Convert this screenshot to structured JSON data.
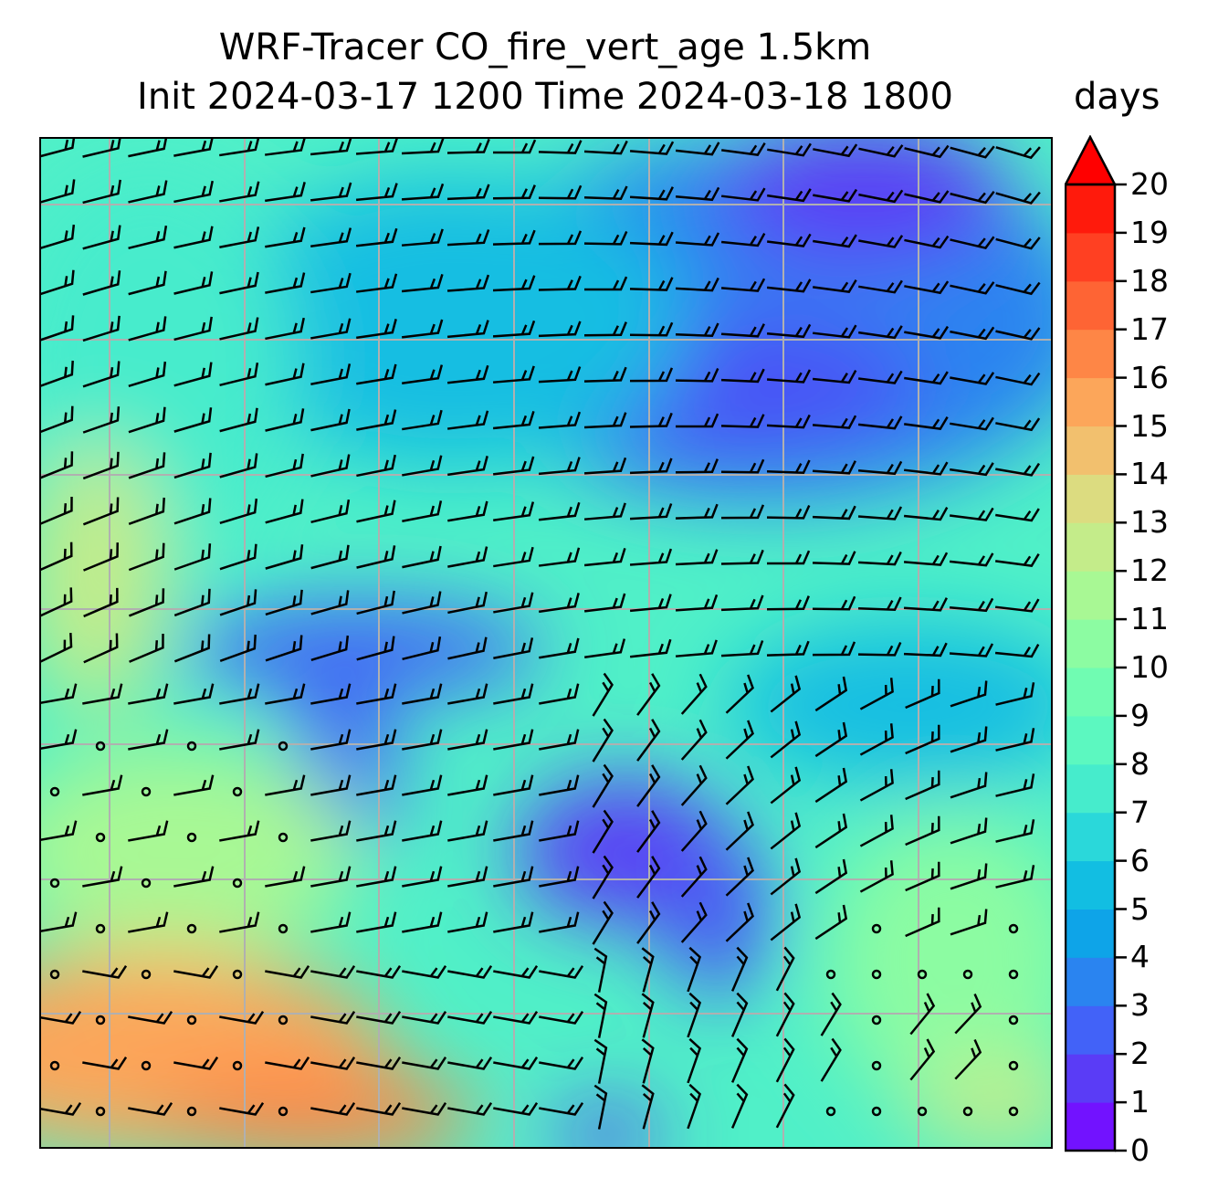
{
  "title": {
    "line1": "WRF-Tracer CO_fire_vert_age 1.5km",
    "line2": "Init 2024-03-17 1200 Time 2024-03-18 1800",
    "units": "days"
  },
  "colorbar": {
    "ticks": [
      "0",
      "1",
      "2",
      "3",
      "4",
      "5",
      "6",
      "7",
      "8",
      "9",
      "10",
      "11",
      "12",
      "13",
      "14",
      "15",
      "16",
      "17",
      "18",
      "19",
      "20"
    ],
    "colors": [
      "#7212ff",
      "#5a3cf6",
      "#4262f8",
      "#2a84f0",
      "#0ea4e8",
      "#12bee2",
      "#2ad8da",
      "#46eccc",
      "#5cf8c0",
      "#70fcb2",
      "#8cfca2",
      "#a8f894",
      "#c4ec8a",
      "#dcdc80",
      "#f2c06e",
      "#fca65a",
      "#fe8646",
      "#fe6434",
      "#ff4022",
      "#ff1a0c"
    ],
    "extend_color": "#ff0000",
    "extend": "max"
  }
}
